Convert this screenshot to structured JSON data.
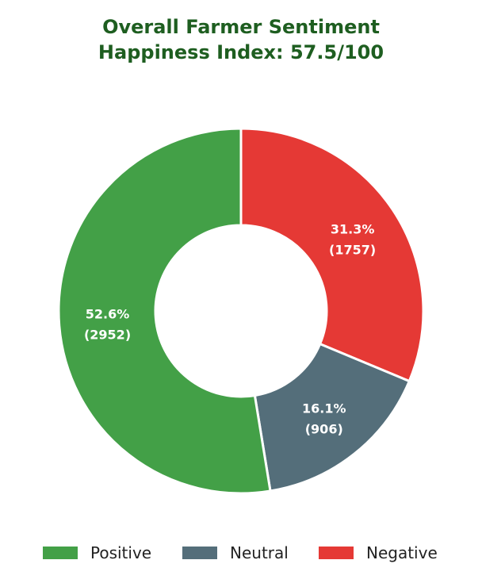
{
  "title": {
    "line1": "Overall Farmer Sentiment",
    "line2": "Happiness Index: 57.5/100"
  },
  "colors": {
    "title": "#1e5e20",
    "positive": "#43a047",
    "neutral": "#546e7a",
    "negative": "#e53935",
    "label": "#ffffff"
  },
  "chart_data": {
    "type": "pie",
    "variant": "donut",
    "title": "Overall Farmer Sentiment\nHappiness Index: 57.5/100",
    "start": "12 o'clock, clockwise",
    "legend_position": "bottom",
    "slices": [
      {
        "name": "Negative",
        "value": 1757,
        "percent": "31.3%",
        "count_label": "(1757)",
        "color": "#e53935"
      },
      {
        "name": "Neutral",
        "value": 906,
        "percent": "16.1%",
        "count_label": "(906)",
        "color": "#546e7a"
      },
      {
        "name": "Positive",
        "value": 2952,
        "percent": "52.6%",
        "count_label": "(2952)",
        "color": "#43a047"
      }
    ]
  },
  "legend": [
    {
      "label": "Positive",
      "color": "#43a047"
    },
    {
      "label": "Neutral",
      "color": "#546e7a"
    },
    {
      "label": "Negative",
      "color": "#e53935"
    }
  ]
}
